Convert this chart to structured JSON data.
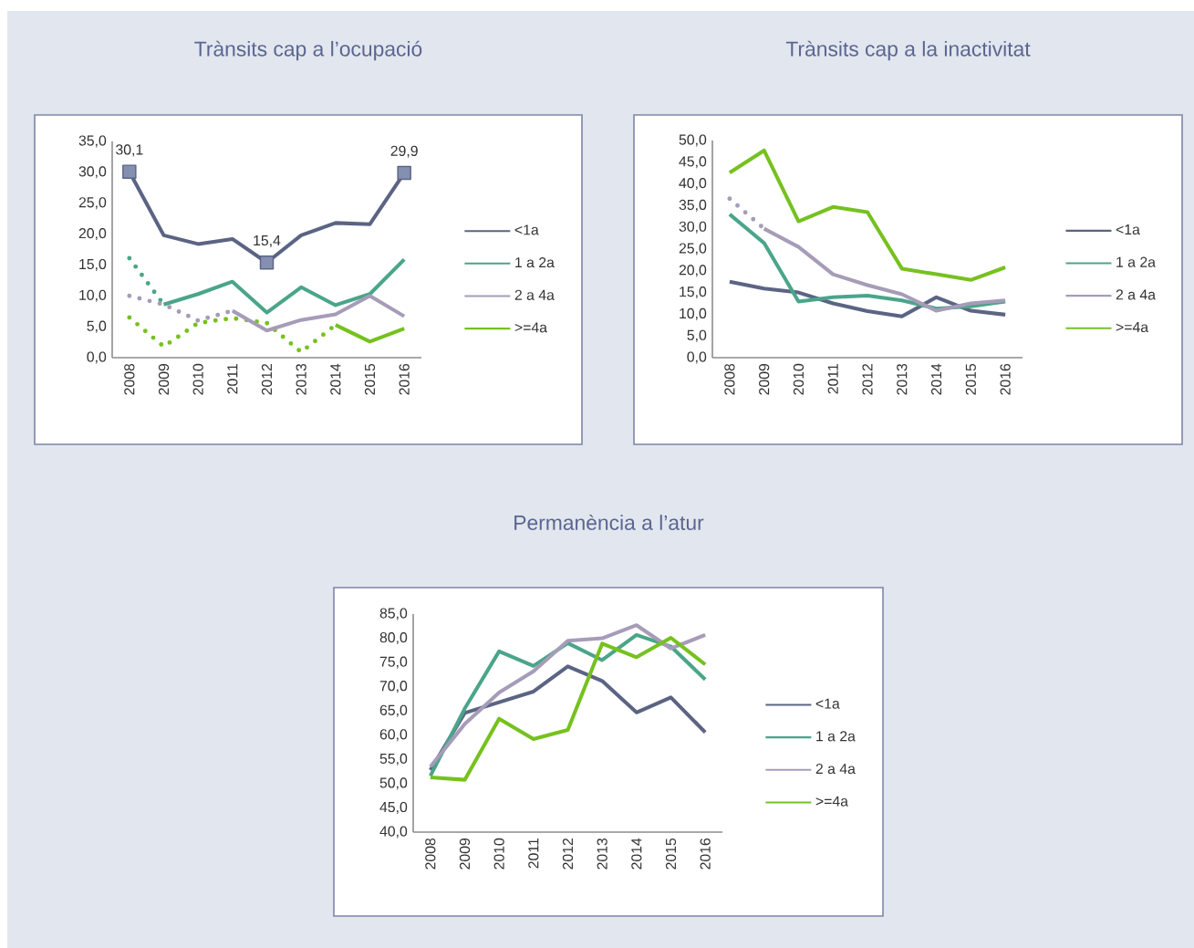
{
  "chart_data": [
    {
      "type": "line",
      "title": "Trànsits cap a l’ocupació",
      "categories": [
        "2008",
        "2009",
        "2010",
        "2011",
        "2012",
        "2013",
        "2014",
        "2015",
        "2016"
      ],
      "ylim": [
        0,
        35
      ],
      "yticks": [
        {
          "value": 0,
          "label": "0,0"
        },
        {
          "value": 5,
          "label": "5,0"
        },
        {
          "value": 10,
          "label": "10,0"
        },
        {
          "value": 15,
          "label": "15,0"
        },
        {
          "value": 20,
          "label": "20,0"
        },
        {
          "value": 25,
          "label": "25,0"
        },
        {
          "value": 30,
          "label": "30,0"
        },
        {
          "value": 35,
          "label": "35,0"
        }
      ],
      "legend": "right",
      "series": [
        {
          "name": "<1a",
          "color": "#5b6483",
          "values": [
            30.1,
            19.8,
            18.4,
            19.2,
            15.4,
            19.8,
            21.8,
            21.6,
            29.9
          ],
          "value_labels": [
            "30,1",
            null,
            null,
            null,
            "15,4",
            null,
            null,
            null,
            "29,9"
          ]
        },
        {
          "name": "1 a 2a",
          "color": "#4aa58a",
          "values": [
            null,
            8.6,
            10.3,
            12.3,
            7.3,
            11.4,
            8.5,
            10.3,
            15.9
          ]
        },
        {
          "name": "2 a 4a",
          "color": "#a69cb8",
          "values": [
            null,
            null,
            null,
            7.6,
            4.4,
            6.1,
            7.0,
            10.0,
            6.7
          ]
        },
        {
          "name": ">=4a",
          "color": "#76c11f",
          "values": [
            null,
            null,
            null,
            null,
            null,
            null,
            5.3,
            2.6,
            4.7
          ]
        },
        {
          "color": "#4aa58a",
          "line_style": "dotted",
          "values": [
            16.1,
            8.6,
            null,
            null,
            null,
            null,
            null,
            null,
            null
          ]
        },
        {
          "color": "#a69cb8",
          "line_style": "dotted",
          "values": [
            10.0,
            8.6,
            6.0,
            7.6,
            null,
            null,
            null,
            null,
            null
          ]
        },
        {
          "color": "#76c11f",
          "line_style": "dotted",
          "values": [
            6.5,
            1.8,
            5.6,
            6.4,
            5.6,
            0.9,
            5.3,
            null,
            null
          ]
        }
      ]
    },
    {
      "type": "line",
      "title": "Trànsits cap a la inactivitat",
      "categories": [
        "2008",
        "2009",
        "2010",
        "2011",
        "2012",
        "2013",
        "2014",
        "2015",
        "2016"
      ],
      "ylim": [
        0,
        50
      ],
      "yticks": [
        {
          "value": 0,
          "label": "0,0"
        },
        {
          "value": 5,
          "label": "5,0"
        },
        {
          "value": 10,
          "label": "10,0"
        },
        {
          "value": 15,
          "label": "15,0"
        },
        {
          "value": 20,
          "label": "20,0"
        },
        {
          "value": 25,
          "label": "25,0"
        },
        {
          "value": 30,
          "label": "30,0"
        },
        {
          "value": 35,
          "label": "35,0"
        },
        {
          "value": 40,
          "label": "40,0"
        },
        {
          "value": 45,
          "label": "45,0"
        },
        {
          "value": 50,
          "label": "50,0"
        }
      ],
      "legend": "right",
      "series": [
        {
          "name": "<1a",
          "color": "#5b6483",
          "values": [
            17.5,
            15.9,
            15.0,
            12.5,
            10.7,
            9.5,
            13.9,
            10.8,
            9.9
          ]
        },
        {
          "name": "1 a 2a",
          "color": "#4aa58a",
          "values": [
            33.0,
            26.4,
            12.9,
            13.9,
            14.3,
            13.2,
            11.3,
            11.8,
            12.9
          ]
        },
        {
          "name": "2 a 4a",
          "color": "#a69cb8",
          "values": [
            null,
            29.7,
            25.5,
            19.2,
            16.7,
            14.6,
            10.8,
            12.5,
            13.2
          ]
        },
        {
          "name": ">=4a",
          "color": "#76c11f",
          "values": [
            42.6,
            47.7,
            31.4,
            34.7,
            33.5,
            20.5,
            19.2,
            17.9,
            20.8
          ]
        },
        {
          "color": "#a69cb8",
          "line_style": "dotted",
          "values": [
            36.6,
            29.7,
            null,
            null,
            null,
            null,
            null,
            null,
            null
          ]
        }
      ]
    },
    {
      "type": "line",
      "title": "Permanència a l’atur",
      "categories": [
        "2008",
        "2009",
        "2010",
        "2011",
        "2012",
        "2013",
        "2014",
        "2015",
        "2016"
      ],
      "ylim": [
        40,
        85
      ],
      "yticks": [
        {
          "value": 40,
          "label": "40,0"
        },
        {
          "value": 45,
          "label": "45,0"
        },
        {
          "value": 50,
          "label": "50,0"
        },
        {
          "value": 55,
          "label": "55,0"
        },
        {
          "value": 60,
          "label": "60,0"
        },
        {
          "value": 65,
          "label": "65,0"
        },
        {
          "value": 70,
          "label": "70,0"
        },
        {
          "value": 75,
          "label": "75,0"
        },
        {
          "value": 80,
          "label": "80,0"
        },
        {
          "value": 85,
          "label": "85,0"
        }
      ],
      "legend": "right",
      "series": [
        {
          "name": "<1a",
          "color": "#5b6483",
          "values": [
            52.8,
            64.6,
            66.8,
            69.0,
            74.2,
            71.2,
            64.7,
            67.8,
            60.6
          ]
        },
        {
          "name": "1 a 2a",
          "color": "#4aa58a",
          "values": [
            51.6,
            65.5,
            77.3,
            74.3,
            79.0,
            75.5,
            80.7,
            78.3,
            71.5
          ]
        },
        {
          "name": "2 a 4a",
          "color": "#a69cb8",
          "values": [
            53.5,
            62.3,
            68.8,
            73.2,
            79.5,
            80.0,
            82.7,
            77.9,
            80.7
          ]
        },
        {
          "name": ">=4a",
          "color": "#76c11f",
          "values": [
            51.3,
            50.8,
            63.4,
            59.2,
            61.1,
            78.9,
            76.1,
            80.1,
            74.6
          ]
        }
      ]
    }
  ]
}
